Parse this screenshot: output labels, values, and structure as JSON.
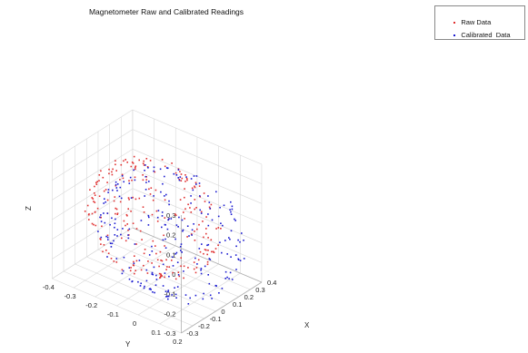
{
  "chart_data": {
    "type": "scatter",
    "title": "Magnetometer Raw and Calibrated  Readings",
    "xlabel": "X",
    "ylabel": "Y",
    "zlabel": "Z",
    "xlim": [
      -0.3,
      0.4
    ],
    "ylim": [
      -0.4,
      0.2
    ],
    "zlim": [
      -0.3,
      0.3
    ],
    "xticks": [
      "-0.3",
      "-0.2",
      "-0.1",
      "0",
      "0.1",
      "0.2",
      "0.3",
      "0.4"
    ],
    "yticks": [
      "0.2",
      "0.1",
      "0",
      "-0.1",
      "-0.2",
      "-0.3",
      "-0.4"
    ],
    "zticks": [
      "0.3",
      "0.2",
      "0.1",
      "0",
      "-0.1",
      "-0.2",
      "-0.3"
    ],
    "grid": true,
    "legend_position": "top-right",
    "series": [
      {
        "name": "Raw Data",
        "color": "#e03030",
        "marker": "point",
        "center": [
          0.05,
          -0.12,
          0.0
        ],
        "radius": 0.27,
        "approx_count": 250
      },
      {
        "name": "Calibrated  Data",
        "color": "#1a1ad0",
        "marker": "point",
        "center": [
          0.0,
          0.0,
          0.0
        ],
        "radius": 0.3,
        "approx_count": 250
      }
    ]
  }
}
